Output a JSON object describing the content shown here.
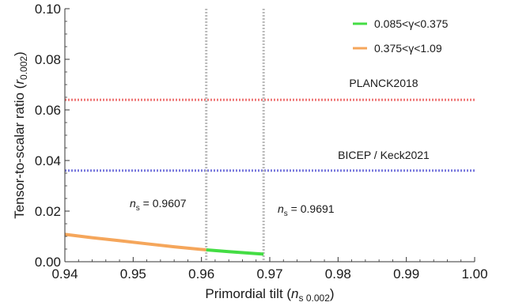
{
  "chart_data": {
    "type": "line",
    "xlabel": {
      "main": "Primordial tilt (",
      "var": "n",
      "sub": "s 0.002",
      "close": ")"
    },
    "ylabel": {
      "main": "Tensor-to-scalar ratio (",
      "var": "r",
      "sub": "0.002",
      "close": ")"
    },
    "xlim": [
      0.94,
      1.0
    ],
    "ylim": [
      0.0,
      0.1
    ],
    "x_ticks": [
      "0.94",
      "0.95",
      "0.96",
      "0.97",
      "0.98",
      "0.99",
      "1.00"
    ],
    "y_ticks": [
      "0.00",
      "0.02",
      "0.04",
      "0.06",
      "0.08",
      "0.10"
    ],
    "grid": false,
    "legend_position": "top-right",
    "series": [
      {
        "name": "0.085<γ<0.375",
        "color": "#44dd44",
        "x": [
          0.9607,
          0.962,
          0.964,
          0.966,
          0.968,
          0.9691
        ],
        "y": [
          0.0047,
          0.0044,
          0.004,
          0.0036,
          0.0032,
          0.003
        ]
      },
      {
        "name": "0.375<γ<1.09",
        "color": "#f5a65b",
        "x": [
          0.94,
          0.944,
          0.948,
          0.952,
          0.956,
          0.9607
        ],
        "y": [
          0.0108,
          0.0095,
          0.0083,
          0.0071,
          0.0059,
          0.0047
        ]
      }
    ],
    "hlines": [
      {
        "label": "PLANCK2018",
        "y": 0.064,
        "color": "#ee7777"
      },
      {
        "label": "BICEP / Keck2021",
        "y": 0.036,
        "color": "#7777dd"
      }
    ],
    "vlines": [
      {
        "var": "n",
        "sub": "s",
        "text": " = 0.9607",
        "x": 0.9607,
        "color": "#bbbbbb"
      },
      {
        "var": "n",
        "sub": "s",
        "text": " = 0.9691",
        "x": 0.9691,
        "color": "#bbbbbb"
      }
    ]
  }
}
